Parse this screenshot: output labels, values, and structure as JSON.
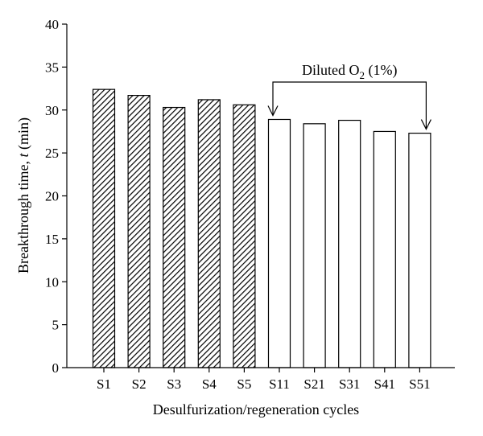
{
  "chart_data": {
    "type": "bar",
    "categories": [
      "S1",
      "S2",
      "S3",
      "S4",
      "S5",
      "S11",
      "S21",
      "S31",
      "S41",
      "S51"
    ],
    "values": [
      32.4,
      31.7,
      30.3,
      31.2,
      30.6,
      28.9,
      28.4,
      28.8,
      27.5,
      27.3
    ],
    "fill_styles": [
      "hatched",
      "hatched",
      "hatched",
      "hatched",
      "hatched",
      "open",
      "open",
      "open",
      "open",
      "open"
    ],
    "xlabel": "Desulfurization/regeneration cycles",
    "ylabel_prefix": "Breakthrough time, ",
    "ylabel_var": "t",
    "ylabel_suffix": " (min)",
    "ylim": [
      0,
      40
    ],
    "yticks": [
      0,
      5,
      10,
      15,
      20,
      25,
      30,
      35,
      40
    ],
    "grid": false,
    "annotation": {
      "text_prefix": "Diluted O",
      "text_sub": "2",
      "text_suffix": " (1%)",
      "from_category": "S11",
      "to_category": "S51"
    },
    "colors": {
      "bar_edge": "#000000",
      "hatch": "#000000",
      "open_fill": "#ffffff"
    }
  }
}
